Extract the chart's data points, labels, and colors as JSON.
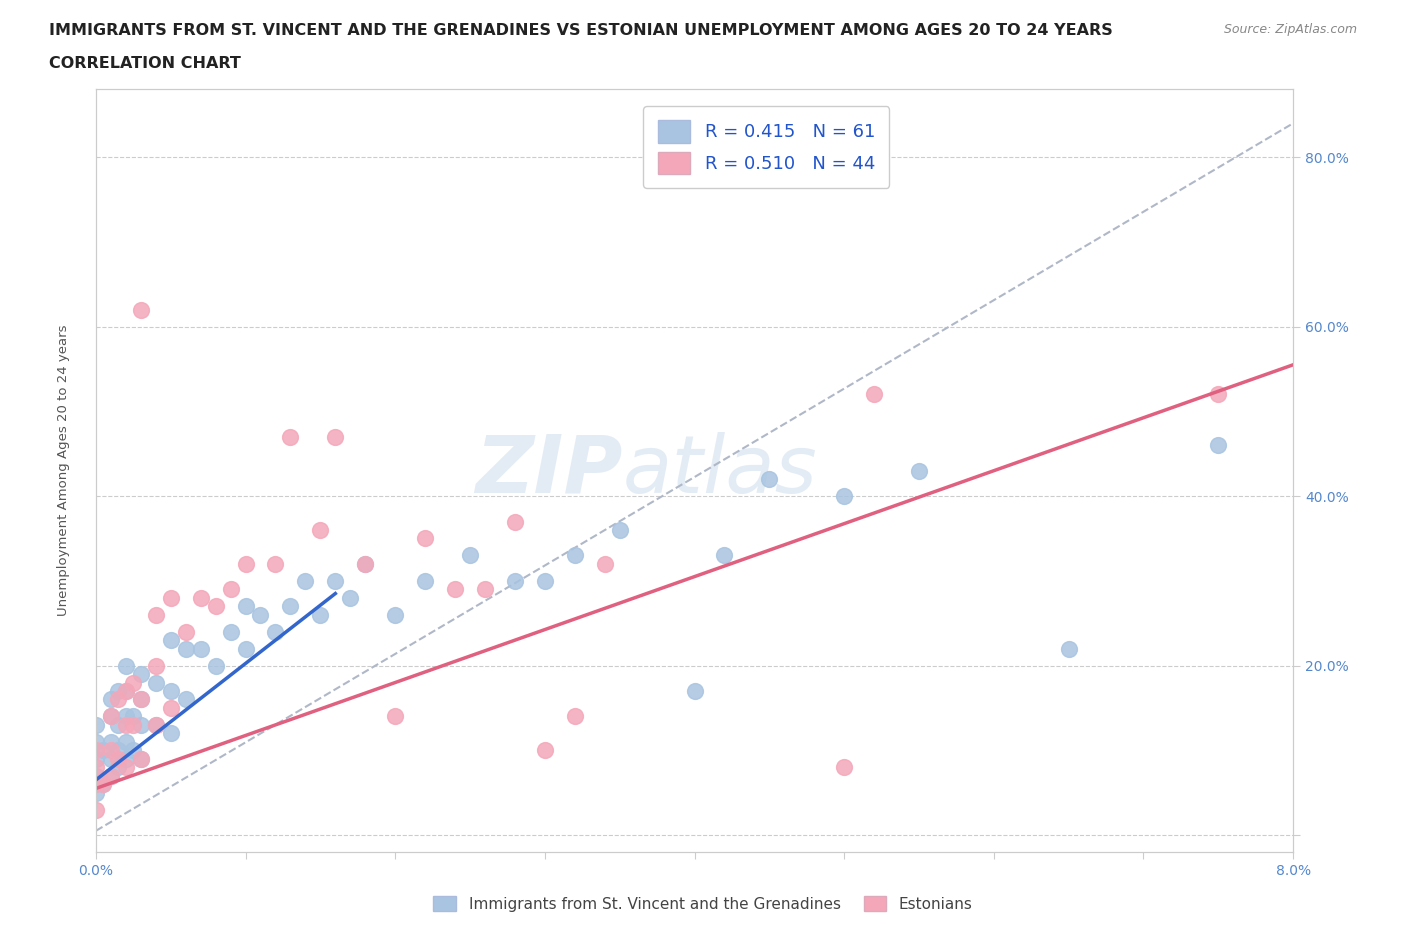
{
  "title_line1": "IMMIGRANTS FROM ST. VINCENT AND THE GRENADINES VS ESTONIAN UNEMPLOYMENT AMONG AGES 20 TO 24 YEARS",
  "title_line2": "CORRELATION CHART",
  "source": "Source: ZipAtlas.com",
  "ylabel_label": "Unemployment Among Ages 20 to 24 years",
  "x_min": 0.0,
  "x_max": 0.08,
  "y_min": -0.02,
  "y_max": 0.88,
  "x_ticks": [
    0.0,
    0.01,
    0.02,
    0.03,
    0.04,
    0.05,
    0.06,
    0.07,
    0.08
  ],
  "x_tick_labels": [
    "0.0%",
    "",
    "",
    "",
    "",
    "",
    "",
    "",
    "8.0%"
  ],
  "y_ticks": [
    0.0,
    0.2,
    0.4,
    0.6,
    0.8
  ],
  "y_tick_labels": [
    "",
    "20.0%",
    "40.0%",
    "60.0%",
    "80.0%"
  ],
  "blue_color": "#a8c4e0",
  "pink_color": "#f4a7b9",
  "blue_line_color": "#3366cc",
  "pink_line_color": "#e06080",
  "dashed_line_color": "#b0b8c8",
  "legend_R1": "0.415",
  "legend_N1": "61",
  "legend_R2": "0.510",
  "legend_N2": "44",
  "watermark_zip": "ZIP",
  "watermark_atlas": "atlas",
  "blue_scatter_x": [
    0.0,
    0.0,
    0.0,
    0.0,
    0.0,
    0.0005,
    0.0005,
    0.001,
    0.001,
    0.001,
    0.001,
    0.001,
    0.0015,
    0.0015,
    0.0015,
    0.0015,
    0.002,
    0.002,
    0.002,
    0.002,
    0.002,
    0.0025,
    0.0025,
    0.003,
    0.003,
    0.003,
    0.003,
    0.004,
    0.004,
    0.005,
    0.005,
    0.005,
    0.006,
    0.006,
    0.007,
    0.008,
    0.009,
    0.01,
    0.01,
    0.011,
    0.012,
    0.013,
    0.014,
    0.015,
    0.016,
    0.017,
    0.018,
    0.02,
    0.022,
    0.025,
    0.028,
    0.03,
    0.032,
    0.035,
    0.04,
    0.042,
    0.045,
    0.05,
    0.055,
    0.065,
    0.075
  ],
  "blue_scatter_y": [
    0.05,
    0.07,
    0.09,
    0.11,
    0.13,
    0.06,
    0.1,
    0.07,
    0.09,
    0.11,
    0.14,
    0.16,
    0.08,
    0.1,
    0.13,
    0.17,
    0.09,
    0.11,
    0.14,
    0.17,
    0.2,
    0.1,
    0.14,
    0.09,
    0.13,
    0.16,
    0.19,
    0.13,
    0.18,
    0.12,
    0.17,
    0.23,
    0.16,
    0.22,
    0.22,
    0.2,
    0.24,
    0.22,
    0.27,
    0.26,
    0.24,
    0.27,
    0.3,
    0.26,
    0.3,
    0.28,
    0.32,
    0.26,
    0.3,
    0.33,
    0.3,
    0.3,
    0.33,
    0.36,
    0.17,
    0.33,
    0.42,
    0.4,
    0.43,
    0.22,
    0.46
  ],
  "pink_scatter_x": [
    0.0,
    0.0,
    0.0,
    0.0,
    0.0005,
    0.001,
    0.001,
    0.001,
    0.0015,
    0.0015,
    0.002,
    0.002,
    0.002,
    0.0025,
    0.0025,
    0.003,
    0.003,
    0.003,
    0.004,
    0.004,
    0.004,
    0.005,
    0.005,
    0.006,
    0.007,
    0.008,
    0.009,
    0.01,
    0.012,
    0.013,
    0.015,
    0.016,
    0.018,
    0.02,
    0.022,
    0.024,
    0.026,
    0.028,
    0.03,
    0.032,
    0.034,
    0.05,
    0.052,
    0.075
  ],
  "pink_scatter_y": [
    0.03,
    0.06,
    0.08,
    0.1,
    0.06,
    0.07,
    0.1,
    0.14,
    0.09,
    0.16,
    0.08,
    0.13,
    0.17,
    0.13,
    0.18,
    0.09,
    0.16,
    0.62,
    0.13,
    0.2,
    0.26,
    0.15,
    0.28,
    0.24,
    0.28,
    0.27,
    0.29,
    0.32,
    0.32,
    0.47,
    0.36,
    0.47,
    0.32,
    0.14,
    0.35,
    0.29,
    0.29,
    0.37,
    0.1,
    0.14,
    0.32,
    0.08,
    0.52,
    0.52
  ],
  "blue_line_x0": 0.0,
  "blue_line_x1": 0.016,
  "blue_line_y0": 0.065,
  "blue_line_y1": 0.285,
  "pink_line_x0": 0.0,
  "pink_line_x1": 0.08,
  "pink_line_y0": 0.055,
  "pink_line_y1": 0.555,
  "dash_line_x0": 0.0,
  "dash_line_x1": 0.08,
  "dash_line_y0": 0.005,
  "dash_line_y1": 0.84,
  "title_fontsize": 11.5,
  "subtitle_fontsize": 11.5,
  "axis_tick_color": "#5588cc",
  "axis_tick_fontsize": 10,
  "ylabel_fontsize": 9.5,
  "legend_fontsize": 13,
  "legend_color": "#2255cc"
}
